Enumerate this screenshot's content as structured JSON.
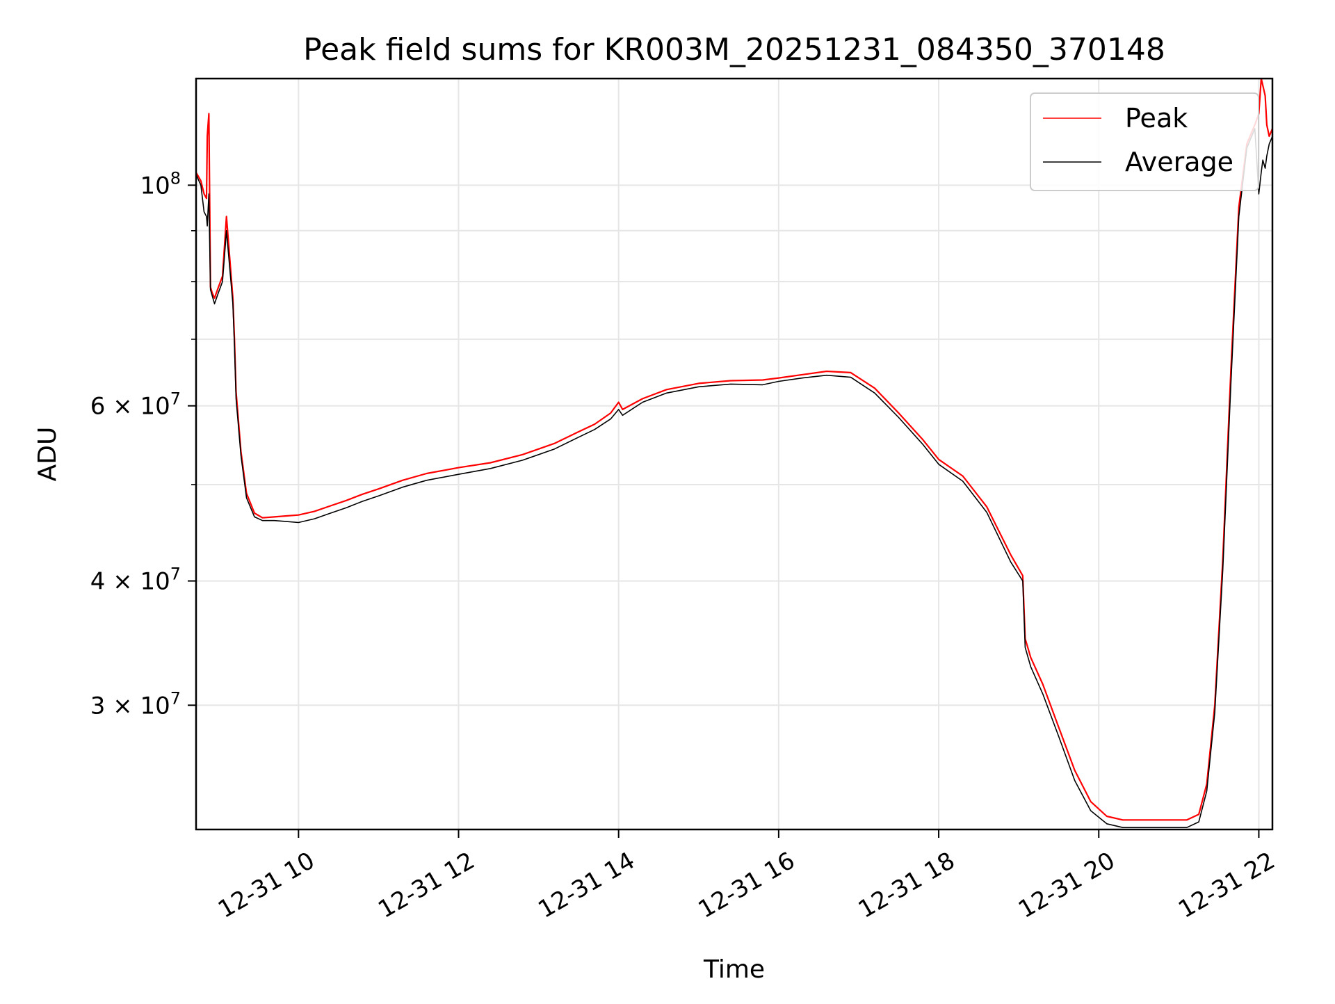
{
  "chart_data": {
    "type": "line",
    "title": "Peak field sums for KR003M_20251231_084350_370148",
    "xlabel": "Time",
    "ylabel": "ADU",
    "yscale": "log",
    "xlim_hours": [
      8.72,
      22.17
    ],
    "ylim": [
      22500000,
      128000000
    ],
    "x_ticks": [
      {
        "value": 10,
        "label": "12-31 10"
      },
      {
        "value": 12,
        "label": "12-31 12"
      },
      {
        "value": 14,
        "label": "12-31 14"
      },
      {
        "value": 16,
        "label": "12-31 16"
      },
      {
        "value": 18,
        "label": "12-31 18"
      },
      {
        "value": 20,
        "label": "12-31 20"
      },
      {
        "value": 22,
        "label": "12-31 22"
      }
    ],
    "y_ticks_major": [
      {
        "value": 100000000,
        "base": "10",
        "exp": "8",
        "mantissa": ""
      },
      {
        "value": 60000000,
        "base": "10",
        "exp": "7",
        "mantissa": "6"
      },
      {
        "value": 40000000,
        "base": "10",
        "exp": "7",
        "mantissa": "4"
      },
      {
        "value": 30000000,
        "base": "10",
        "exp": "7",
        "mantissa": "3"
      }
    ],
    "y_ticks_minor": [
      90000000,
      80000000,
      70000000,
      50000000
    ],
    "grid": true,
    "legend": {
      "position": "top-right",
      "entries": [
        {
          "name": "Peak",
          "color": "#ff0000"
        },
        {
          "name": "Average",
          "color": "#000000"
        }
      ]
    },
    "series": [
      {
        "name": "Peak",
        "color": "#ff0000",
        "x": [
          8.72,
          8.78,
          8.82,
          8.85,
          8.86,
          8.88,
          8.9,
          8.92,
          8.95,
          9.0,
          9.05,
          9.1,
          9.18,
          9.2,
          9.22,
          9.28,
          9.35,
          9.45,
          9.55,
          9.7,
          9.85,
          10.0,
          10.2,
          10.4,
          10.6,
          10.8,
          11.0,
          11.3,
          11.6,
          12.0,
          12.4,
          12.8,
          13.2,
          13.5,
          13.7,
          13.9,
          14.0,
          14.05,
          14.3,
          14.6,
          15.0,
          15.4,
          15.8,
          16.0,
          16.3,
          16.6,
          16.9,
          17.2,
          17.5,
          17.8,
          18.0,
          18.3,
          18.6,
          18.9,
          19.05,
          19.08,
          19.15,
          19.3,
          19.5,
          19.7,
          19.9,
          20.1,
          20.3,
          20.5,
          20.7,
          20.9,
          21.1,
          21.25,
          21.35,
          21.45,
          21.55,
          21.65,
          21.75,
          21.85,
          21.95,
          22.0,
          22.03,
          22.05,
          22.08,
          22.1,
          22.13,
          22.17
        ],
        "y": [
          103000000,
          101000000,
          98000000,
          97000000,
          112000000,
          118000000,
          79000000,
          78000000,
          77000000,
          79000000,
          81000000,
          93000000,
          77000000,
          70000000,
          62000000,
          54000000,
          49000000,
          46800000,
          46300000,
          46400000,
          46500000,
          46600000,
          47000000,
          47600000,
          48200000,
          48900000,
          49500000,
          50500000,
          51300000,
          52000000,
          52600000,
          53600000,
          55000000,
          56500000,
          57500000,
          59000000,
          60500000,
          59500000,
          61000000,
          62300000,
          63200000,
          63600000,
          63700000,
          64000000,
          64500000,
          65000000,
          64800000,
          62500000,
          59000000,
          55500000,
          53000000,
          51000000,
          47500000,
          42500000,
          40500000,
          35000000,
          33500000,
          31500000,
          28500000,
          25800000,
          24000000,
          23200000,
          23000000,
          23000000,
          23000000,
          23000000,
          23000000,
          23300000,
          25000000,
          30000000,
          42000000,
          65000000,
          95000000,
          110000000,
          115000000,
          118000000,
          128000000,
          126000000,
          123000000,
          115000000,
          112000000,
          114000000
        ]
      },
      {
        "name": "Average",
        "color": "#000000",
        "x": [
          8.72,
          8.78,
          8.82,
          8.85,
          8.86,
          8.88,
          8.9,
          8.92,
          8.95,
          9.0,
          9.05,
          9.1,
          9.18,
          9.2,
          9.22,
          9.28,
          9.35,
          9.45,
          9.55,
          9.7,
          9.85,
          10.0,
          10.2,
          10.4,
          10.6,
          10.8,
          11.0,
          11.3,
          11.6,
          12.0,
          12.4,
          12.8,
          13.2,
          13.5,
          13.7,
          13.9,
          14.0,
          14.05,
          14.3,
          14.6,
          15.0,
          15.4,
          15.8,
          16.0,
          16.3,
          16.6,
          16.9,
          17.2,
          17.5,
          17.8,
          18.0,
          18.3,
          18.6,
          18.9,
          19.05,
          19.08,
          19.15,
          19.3,
          19.5,
          19.7,
          19.9,
          20.1,
          20.3,
          20.5,
          20.7,
          20.9,
          21.1,
          21.25,
          21.35,
          21.45,
          21.55,
          21.65,
          21.75,
          21.85,
          21.95,
          22.0,
          22.03,
          22.05,
          22.08,
          22.1,
          22.13,
          22.17
        ],
        "y": [
          102500000,
          100000000,
          94000000,
          93000000,
          91000000,
          98000000,
          78500000,
          77500000,
          76000000,
          78000000,
          80000000,
          90000000,
          76000000,
          69000000,
          61000000,
          53500000,
          48500000,
          46400000,
          46000000,
          46000000,
          45900000,
          45800000,
          46200000,
          46800000,
          47400000,
          48100000,
          48700000,
          49700000,
          50500000,
          51200000,
          51900000,
          52900000,
          54300000,
          55800000,
          56800000,
          58200000,
          59500000,
          58700000,
          60500000,
          61800000,
          62700000,
          63100000,
          63000000,
          63500000,
          64000000,
          64400000,
          64100000,
          61800000,
          58400000,
          54900000,
          52400000,
          50400000,
          46900000,
          41800000,
          40000000,
          34300000,
          32800000,
          30800000,
          27900000,
          25200000,
          23500000,
          22800000,
          22600000,
          22600000,
          22600000,
          22600000,
          22600000,
          22900000,
          24600000,
          29500000,
          41000000,
          63000000,
          93000000,
          109000000,
          114000000,
          98000000,
          103000000,
          106000000,
          104000000,
          107000000,
          110000000,
          112000000
        ]
      }
    ]
  }
}
